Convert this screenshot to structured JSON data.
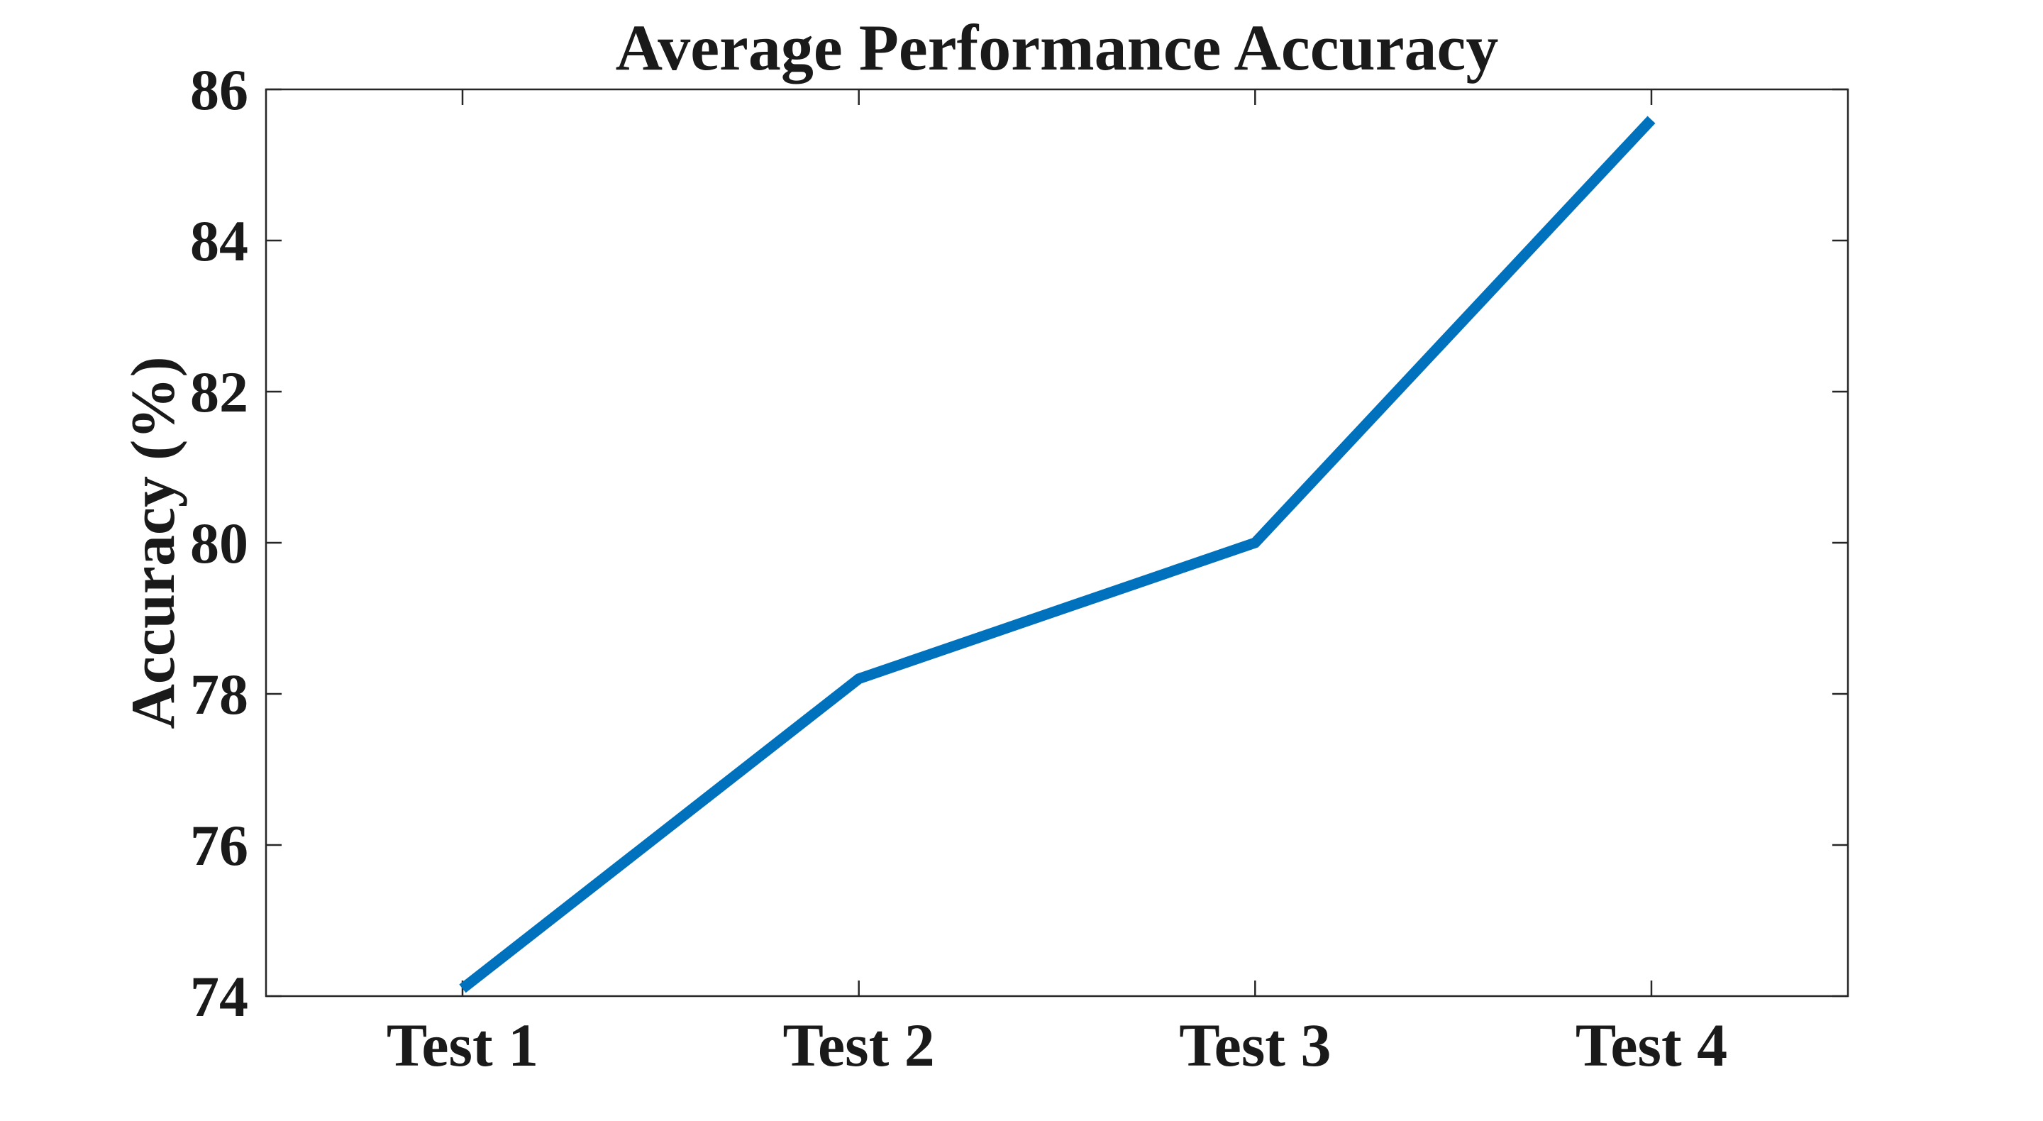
{
  "chart_data": {
    "type": "line",
    "title": "Average Performance Accuracy",
    "xlabel": "",
    "ylabel": "Accuracy (%)",
    "categories": [
      "Test 1",
      "Test 2",
      "Test 3",
      "Test 4"
    ],
    "values": [
      74.1,
      78.2,
      80.0,
      85.6
    ],
    "ylim": [
      74,
      86
    ],
    "yticks": [
      74,
      76,
      78,
      80,
      82,
      84,
      86
    ],
    "grid": false,
    "legend": "none",
    "markers": "none",
    "box": true,
    "tick_direction": "in",
    "line_color": "#0072BD",
    "axis_color": "#262626",
    "text_color": "#1a1a1a",
    "background_color": "#ffffff"
  }
}
